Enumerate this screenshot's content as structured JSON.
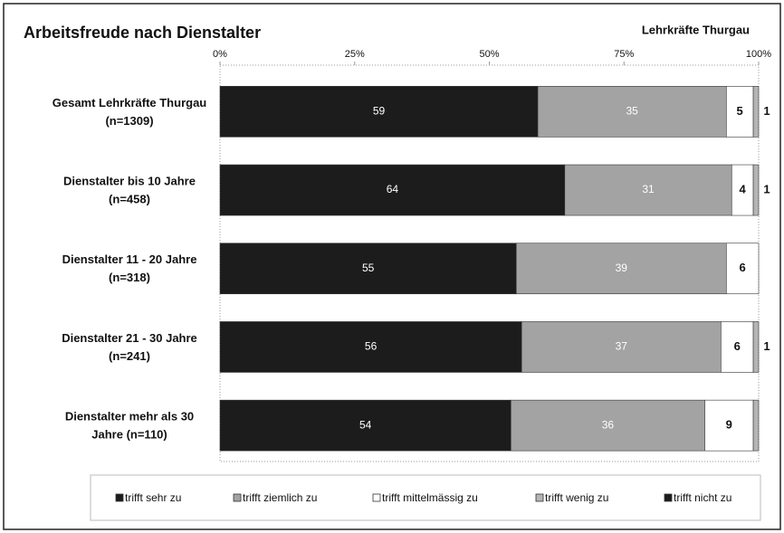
{
  "chart_data": {
    "type": "stacked_barh",
    "title": "Arbeitsfreude nach Dienstalter",
    "subtitle": "Lehrkräfte Thurgau",
    "categories": [
      [
        "Gesamt Lehrkräfte Thurgau",
        "(n=1309)"
      ],
      [
        "Dienstalter bis 10 Jahre",
        "(n=458)"
      ],
      [
        "Dienstalter  11 - 20 Jahre",
        "(n=318)"
      ],
      [
        "Dienstalter  21 - 30 Jahre",
        "(n=241)"
      ],
      [
        "Dienstalter  mehr als 30",
        "Jahre (n=110)"
      ]
    ],
    "series": [
      {
        "name": "trifft sehr zu",
        "color": "#1c1c1c",
        "values": [
          59,
          64,
          55,
          56,
          54
        ],
        "value_labels": [
          "59",
          "64",
          "55",
          "56",
          "54"
        ]
      },
      {
        "name": "trifft ziemlich zu",
        "color": "#a3a3a3",
        "values": [
          35,
          31,
          39,
          37,
          36
        ],
        "value_labels": [
          "35",
          "31",
          "39",
          "37",
          "36"
        ]
      },
      {
        "name": "trifft mittelmässig zu",
        "color": "#ffffff",
        "values": [
          5,
          4,
          6,
          6,
          9
        ],
        "value_labels": [
          "5",
          "4",
          "6",
          "6",
          "9"
        ]
      },
      {
        "name": "trifft wenig zu",
        "color": "#b5b5b5",
        "values": [
          1,
          1,
          0,
          1,
          1
        ],
        "value_labels": [
          "1",
          "1",
          null,
          "1",
          null
        ]
      },
      {
        "name": "trifft nicht zu",
        "color": "#1c1c1c",
        "values": [
          0,
          0,
          0,
          0,
          0
        ],
        "value_labels": [
          null,
          null,
          null,
          null,
          null
        ]
      }
    ],
    "xlim": [
      0,
      100
    ],
    "xticks": [
      {
        "value": 0,
        "label": "0%"
      },
      {
        "value": 25,
        "label": "25%"
      },
      {
        "value": 50,
        "label": "50%"
      },
      {
        "value": 75,
        "label": "75%"
      },
      {
        "value": 100,
        "label": "100%"
      }
    ]
  }
}
